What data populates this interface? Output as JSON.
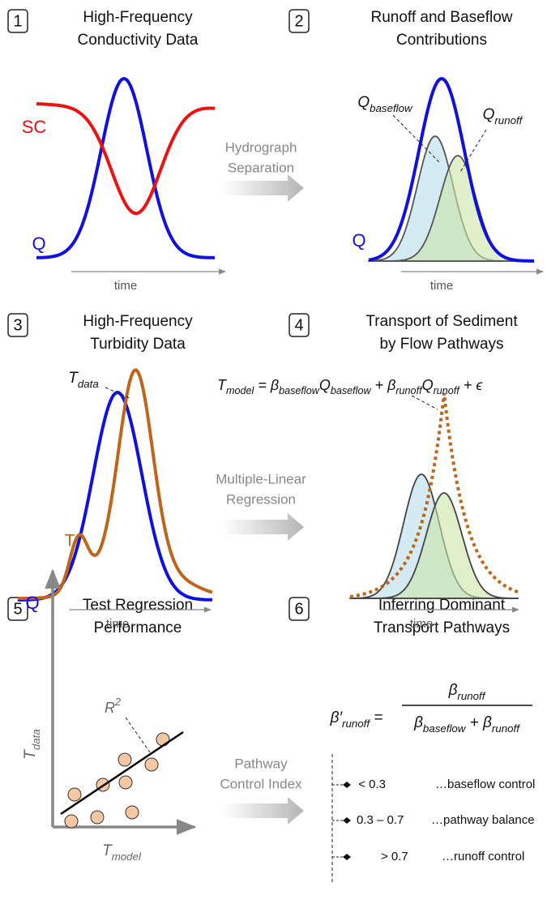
{
  "panels": [
    {
      "number": "1",
      "title": [
        "High-Frequency",
        "Conductivity Data"
      ]
    },
    {
      "number": "2",
      "title": [
        "Runoff and Baseflow",
        "Contributions"
      ]
    },
    {
      "number": "3",
      "title": [
        "High-Frequency",
        "Turbidity Data"
      ]
    },
    {
      "number": "4",
      "title": [
        "Transport of Sediment",
        "by Flow Pathways"
      ]
    },
    {
      "number": "5",
      "title": [
        "Test Regression",
        "Performance"
      ]
    },
    {
      "number": "6",
      "title": [
        "Inferring Dominant",
        "Transport Pathways"
      ]
    }
  ],
  "arrows": [
    {
      "lines": [
        "Hydrograph",
        "Separation"
      ]
    },
    {
      "lines": [
        "Multiple-Linear",
        "Regression"
      ]
    },
    {
      "lines": [
        "Pathway",
        "Control Index"
      ]
    }
  ],
  "panel_1": {
    "sc_label": "SC",
    "q_label": "Q",
    "x_label": "time"
  },
  "panel_2": {
    "baseflow_label": {
      "base": "Q",
      "sub": "baseflow"
    },
    "runoff_label": {
      "base": "Q",
      "sub": "runoff"
    },
    "q_label": "Q",
    "x_label": "time"
  },
  "panel_3": {
    "tdata_label": {
      "base": "T",
      "sub": "data"
    },
    "t_label": "T",
    "q_label": "Q",
    "x_label": "time"
  },
  "panel_4": {
    "equation": [
      {
        "text": "T"
      },
      {
        "sub": "model"
      },
      {
        "text": " = β"
      },
      {
        "sub": "baseflow"
      },
      {
        "text": "Q"
      },
      {
        "sub": "baseflow"
      },
      {
        "text": " + β"
      },
      {
        "sub": "runoff"
      },
      {
        "text": "Q"
      },
      {
        "sub": "runoff"
      },
      {
        "text": " + ϵ"
      }
    ],
    "x_label": "time"
  },
  "panel_5": {
    "r2_label": {
      "base": "R",
      "sup": "2"
    },
    "y_label": {
      "base": "T",
      "sub": "data"
    },
    "x_label": {
      "base": "T",
      "sub": "model"
    }
  },
  "panel_6": {
    "lhs": [
      {
        "text": "β′"
      },
      {
        "sub": "runoff"
      },
      {
        "text": " ="
      }
    ],
    "numerator": [
      {
        "text": "β"
      },
      {
        "sub": "runoff"
      }
    ],
    "denominator": [
      {
        "text": "β"
      },
      {
        "sub": "baseflow"
      },
      {
        "text": " + β"
      },
      {
        "sub": "runoff"
      }
    ],
    "classes": [
      {
        "range": "< 0.3",
        "label": "…baseflow control"
      },
      {
        "range": "0.3 – 0.7",
        "label": "…pathway balance"
      },
      {
        "range": "> 0.7",
        "label": "…runoff control"
      }
    ]
  }
}
